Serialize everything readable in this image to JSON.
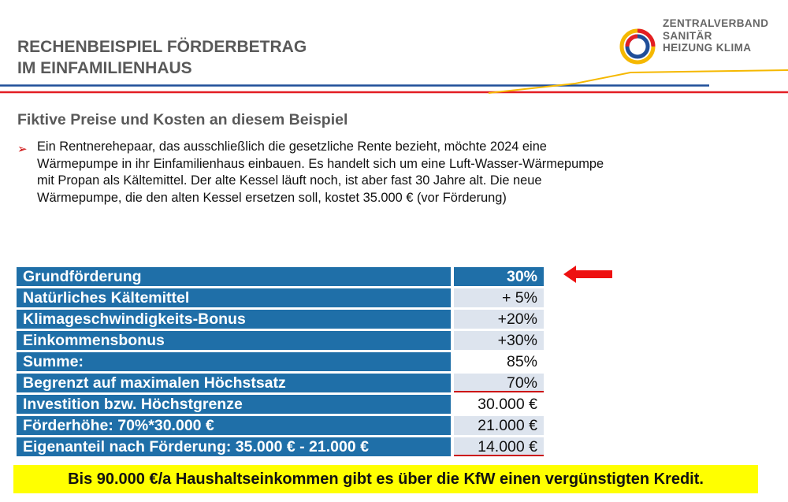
{
  "header": {
    "title_lines": [
      "RECHENBEISPIEL FÖRDERBETRAG",
      "IM EINFAMILIENHAUS"
    ],
    "logo_lines": [
      "ZENTRALVERBAND",
      "SANITÄR",
      "HEIZUNG KLIMA"
    ]
  },
  "subtitle": "Fiktive Preise und Kosten an diesem Beispiel",
  "bullet": {
    "marker": "➢",
    "lines": [
      "Ein Rentnerehepaar, das ausschließlich die gesetzliche Rente bezieht, möchte 2024 eine",
      "Wärmepumpe in ihr Einfamilienhaus einbauen. Es handelt sich um eine Luft-Wasser-Wärmepumpe",
      "mit Propan als Kältemittel. Der alte Kessel läuft noch, ist aber fast 30 Jahre alt. Die neue",
      "Wärmepumpe, die den alten Kessel ersetzen soll, kostet 35.000 € (vor Förderung)"
    ]
  },
  "table": {
    "rows": [
      {
        "label": "Grundförderung",
        "value": "30%"
      },
      {
        "label": "Natürliches Kältemittel",
        "value": "+  5%"
      },
      {
        "label": "Klimageschwindigkeits-Bonus",
        "value": "+20%"
      },
      {
        "label": "Einkommensbonus",
        "value": "+30%"
      },
      {
        "label": "Summe:",
        "value": "85%"
      },
      {
        "label": "Begrenzt auf maximalen Höchstsatz",
        "value": "70%"
      },
      {
        "label": "Investition bzw. Höchstgrenze",
        "value": "30.000 €"
      },
      {
        "label": "Förderhöhe: 70%*30.000 €",
        "value": "21.000 €"
      },
      {
        "label": "Eigenanteil nach Förderung: 35.000 € - 21.000 €",
        "value": "14.000 €"
      }
    ]
  },
  "banner": "Bis 90.000 €/a Haushaltseinkommen gibt es über die KfW einen vergünstigten Kredit.",
  "colors": {
    "table_blue": "#1f6fa8",
    "accent_red": "#cc0000",
    "banner_yellow": "#ffff00",
    "line_blue": "#1f4e99",
    "line_yellow": "#f5b800"
  }
}
